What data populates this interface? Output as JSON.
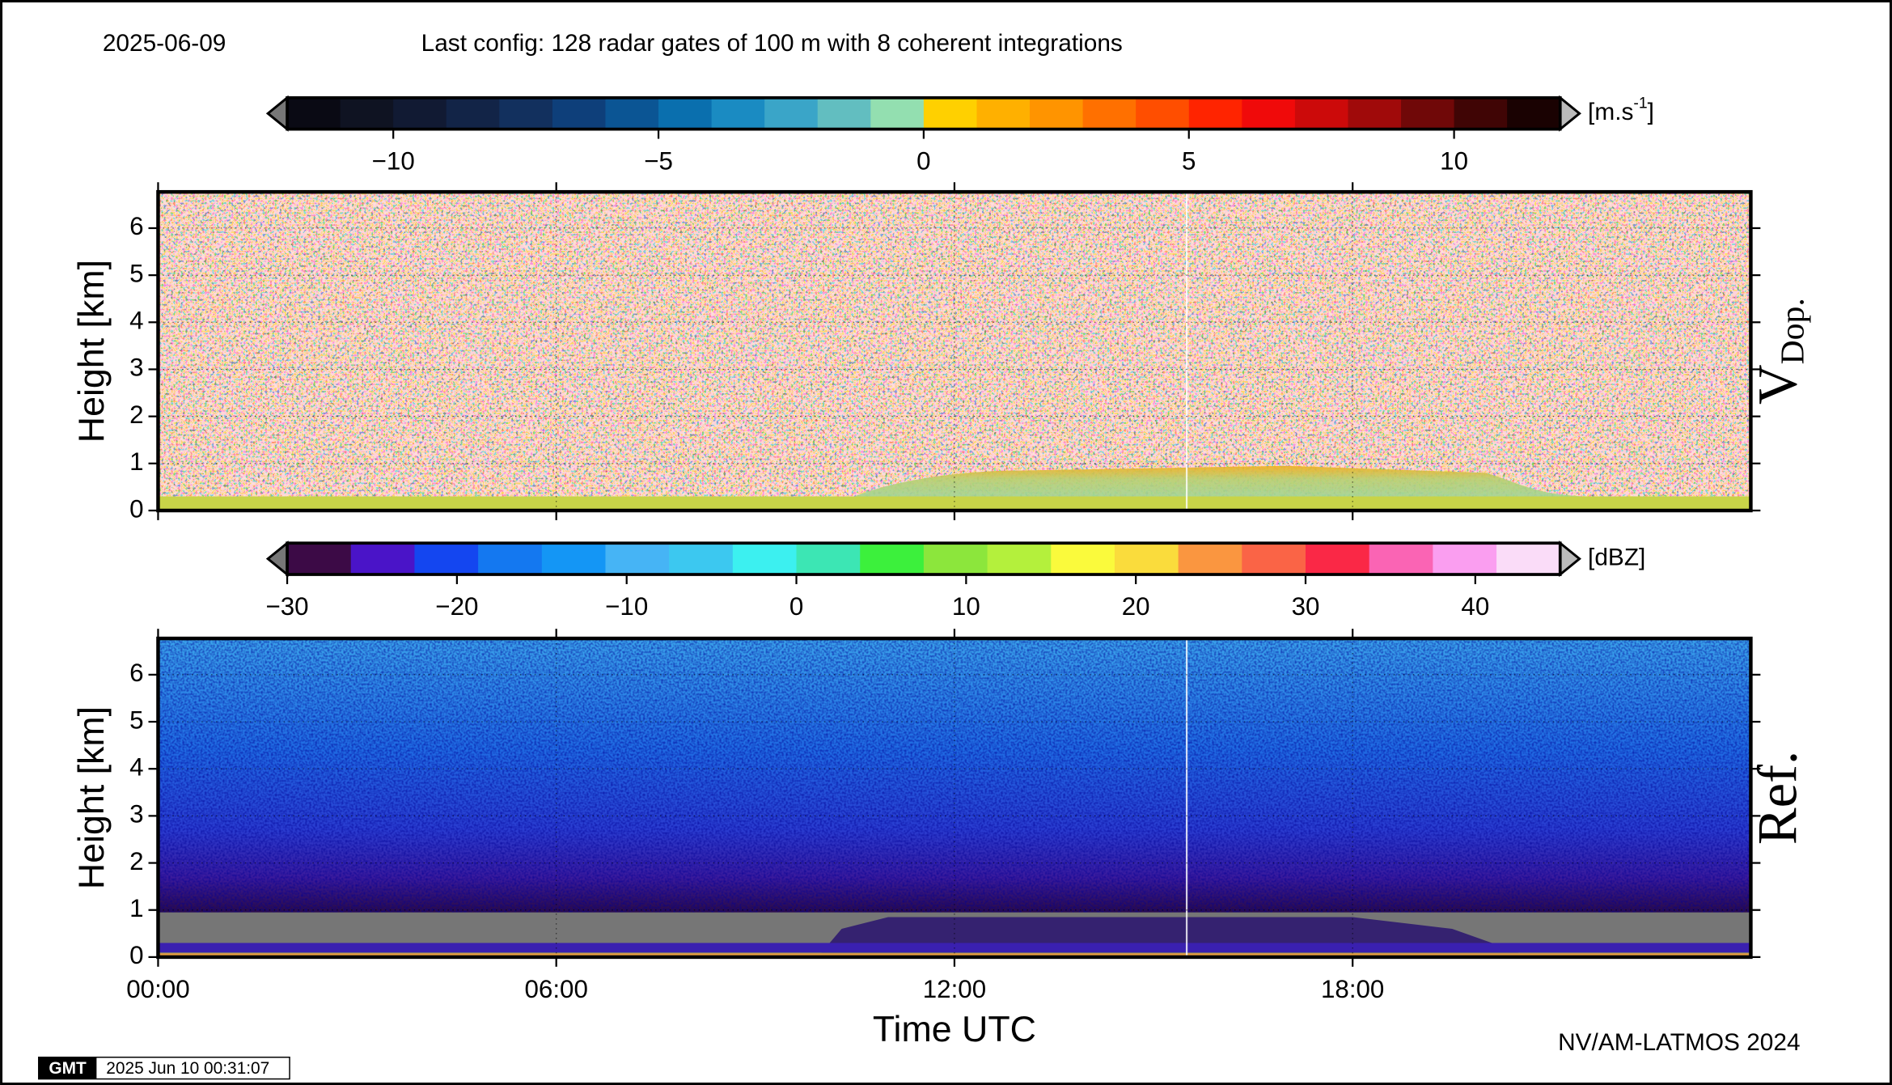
{
  "header": {
    "date": "2025-06-09",
    "title": "Last config: 128 radar gates of 100 m with 8 coherent integrations"
  },
  "chart_data": [
    {
      "type": "heatmap",
      "ylabel": "Height [km]",
      "panel_label": "V",
      "panel_label_sub": "Dop.",
      "xlim": [
        0,
        24
      ],
      "xticks": [
        0,
        6,
        12,
        18
      ],
      "ylim": [
        0,
        6.77
      ],
      "yticks": [
        0,
        1,
        2,
        3,
        4,
        5,
        6
      ],
      "grid": true,
      "colorbar": {
        "lim": [
          -12,
          12
        ],
        "unit": "[m.s",
        "unit_sup": "-1",
        "unit_end": "]",
        "ticks": [
          {
            "value": -10,
            "label": "−10"
          },
          {
            "value": -5,
            "label": "−5"
          },
          0,
          5,
          10
        ],
        "colors": [
          "#0a0a14",
          "#0f1322",
          "#111a33",
          "#122447",
          "#12305e",
          "#0e3f7a",
          "#0b5594",
          "#0a6fae",
          "#1a8bc2",
          "#3aa5c8",
          "#62bec0",
          "#93dfb0",
          "#ffd000",
          "#ffb000",
          "#ff9400",
          "#ff7000",
          "#ff4e00",
          "#ff2400",
          "#f00a0a",
          "#cc0a0a",
          "#a00a0a",
          "#700808",
          "#400505",
          "#1a0202"
        ]
      }
    },
    {
      "type": "heatmap",
      "ylabel": "Height [km]",
      "xlabel": "Time UTC",
      "panel_label": "Ref.",
      "xlim": [
        0,
        24
      ],
      "xticks": [
        {
          "value": 0,
          "label": "00:00"
        },
        {
          "value": 6,
          "label": "06:00"
        },
        {
          "value": 12,
          "label": "12:00"
        },
        {
          "value": 18,
          "label": "18:00"
        }
      ],
      "ylim": [
        0,
        6.77
      ],
      "yticks": [
        0,
        1,
        2,
        3,
        4,
        5,
        6
      ],
      "grid": true,
      "colorbar": {
        "lim": [
          -30,
          45
        ],
        "unit": "[dBZ]",
        "ticks": [
          {
            "value": -30,
            "label": "−30"
          },
          {
            "value": -20,
            "label": "−20"
          },
          {
            "value": -10,
            "label": "−10"
          },
          0,
          10,
          20,
          30,
          40
        ],
        "colors": [
          "#3c0a46",
          "#4a14c8",
          "#1446f0",
          "#1478f0",
          "#1496f5",
          "#46b4f5",
          "#3cc8f0",
          "#3cf0f0",
          "#3ce6b4",
          "#3cf03c",
          "#8ce63c",
          "#b4f03c",
          "#fafa3c",
          "#fadc3c",
          "#fa9640",
          "#fa6446",
          "#fa2846",
          "#fa64b4",
          "#fa9ef0",
          "#fadcf8"
        ]
      }
    }
  ],
  "footer": {
    "credit": "NV/AM-LATMOS 2024",
    "logo": "GMT",
    "timestamp": "2025 Jun 10 00:31:07"
  }
}
